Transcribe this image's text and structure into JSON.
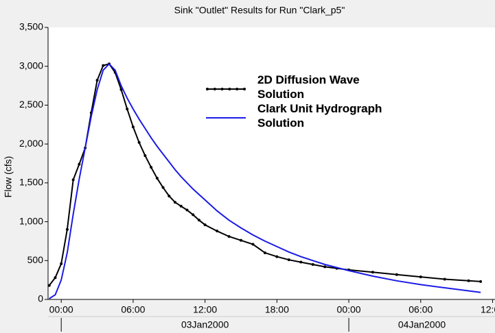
{
  "chart_data": {
    "type": "line",
    "title": "Sink \"Outlet\" Results for Run \"Clark_p5\"",
    "y_label": "Flow (cfs)",
    "legend": "upper center",
    "x": [
      "2000-01-02T23:00",
      "2000-01-02T23:30",
      "2000-01-03T00:00",
      "2000-01-03T00:30",
      "2000-01-03T01:00",
      "2000-01-03T01:30",
      "2000-01-03T02:00",
      "2000-01-03T02:30",
      "2000-01-03T03:00",
      "2000-01-03T03:30",
      "2000-01-03T04:00",
      "2000-01-03T04:30",
      "2000-01-03T05:00",
      "2000-01-03T05:30",
      "2000-01-03T06:00",
      "2000-01-03T06:30",
      "2000-01-03T07:00",
      "2000-01-03T07:30",
      "2000-01-03T08:00",
      "2000-01-03T08:30",
      "2000-01-03T09:00",
      "2000-01-03T09:30",
      "2000-01-03T10:00",
      "2000-01-03T10:30",
      "2000-01-03T11:00",
      "2000-01-03T11:30",
      "2000-01-03T12:00",
      "2000-01-03T13:00",
      "2000-01-03T14:00",
      "2000-01-03T15:00",
      "2000-01-03T16:00",
      "2000-01-03T17:00",
      "2000-01-03T18:00",
      "2000-01-03T19:00",
      "2000-01-03T20:00",
      "2000-01-03T21:00",
      "2000-01-03T22:00",
      "2000-01-03T23:00",
      "2000-01-04T00:00",
      "2000-01-04T02:00",
      "2000-01-04T04:00",
      "2000-01-04T06:00",
      "2000-01-04T08:00",
      "2000-01-04T10:00",
      "2000-01-04T11:00"
    ],
    "series": [
      {
        "name": "2D Diffusion Wave Solution",
        "color": "#000000",
        "markers": true,
        "values": [
          180,
          280,
          460,
          900,
          1540,
          1740,
          1950,
          2400,
          2820,
          3010,
          3030,
          2920,
          2700,
          2450,
          2220,
          2020,
          1850,
          1700,
          1560,
          1440,
          1330,
          1250,
          1200,
          1150,
          1090,
          1020,
          960,
          880,
          810,
          760,
          710,
          600,
          550,
          510,
          480,
          450,
          420,
          400,
          380,
          350,
          320,
          290,
          260,
          240,
          230
        ]
      },
      {
        "name": "Clark Unit Hydrograph Solution",
        "color": "#1a1ae6",
        "markers": false,
        "values": [
          10,
          60,
          250,
          600,
          1100,
          1550,
          1950,
          2350,
          2700,
          2950,
          3030,
          2950,
          2750,
          2590,
          2450,
          2320,
          2200,
          2080,
          1970,
          1870,
          1770,
          1670,
          1580,
          1500,
          1420,
          1350,
          1280,
          1140,
          1020,
          920,
          830,
          750,
          680,
          610,
          550,
          500,
          450,
          410,
          370,
          300,
          240,
          190,
          150,
          110,
          90
        ]
      }
    ],
    "xlim": [
      "2000-01-02T22:54",
      "2000-01-04T12:12"
    ],
    "xticks": [
      {
        "value": "2000-01-03T00:00",
        "label": "00:00"
      },
      {
        "value": "2000-01-03T06:00",
        "label": "06:00"
      },
      {
        "value": "2000-01-03T12:00",
        "label": "12:00"
      },
      {
        "value": "2000-01-03T18:00",
        "label": "18:00"
      },
      {
        "value": "2000-01-04T00:00",
        "label": "00:00"
      },
      {
        "value": "2000-01-04T06:00",
        "label": "06:00"
      },
      {
        "value": "2000-01-04T12:00",
        "label": "12:00"
      }
    ],
    "xdates": [
      {
        "value": "2000-01-03T00:00",
        "label": "03Jan2000"
      },
      {
        "value": "2000-01-04T00:00",
        "label": "04Jan2000"
      }
    ],
    "ylim": [
      0,
      3500
    ],
    "yticks": [
      0,
      500,
      {
        "value": 1000,
        "label": "1,000"
      },
      {
        "value": 1500,
        "label": "1,500"
      },
      {
        "value": 2000,
        "label": "2,000"
      },
      {
        "value": 2500,
        "label": "2,500"
      },
      {
        "value": 3000,
        "label": "3,000"
      },
      {
        "value": 3500,
        "label": "3,500"
      }
    ],
    "grid": false
  }
}
